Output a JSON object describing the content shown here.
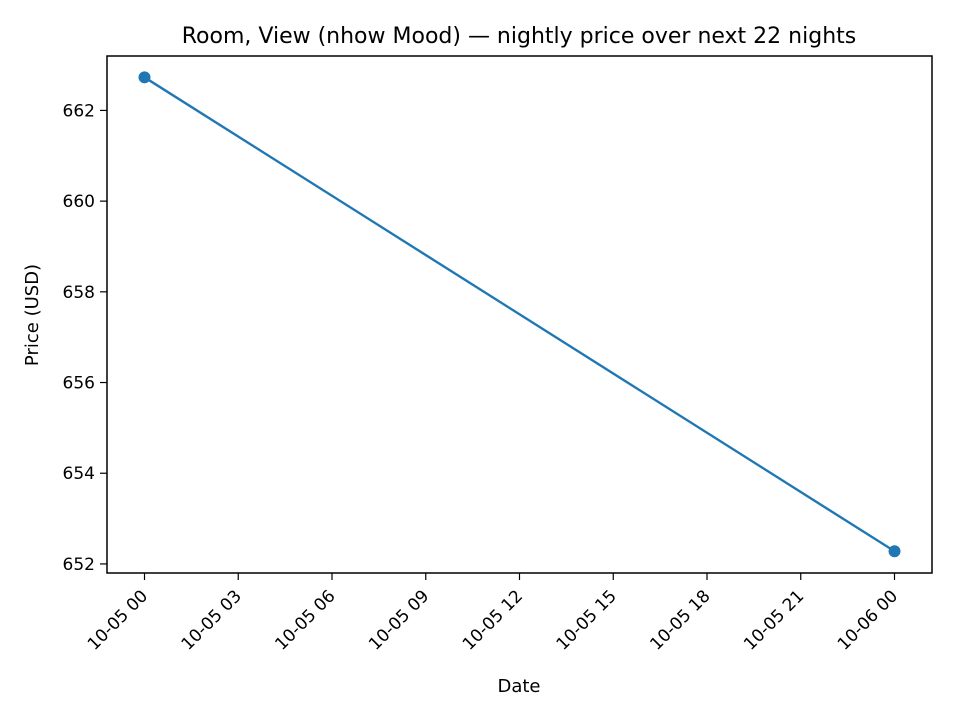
{
  "chart_data": {
    "type": "line",
    "title": "Room, View (nhow Mood) — nightly price over next 22 nights",
    "xlabel": "Date",
    "ylabel": "Price (USD)",
    "x_ticks": [
      "10-05 00",
      "10-05 03",
      "10-05 06",
      "10-05 09",
      "10-05 12",
      "10-05 15",
      "10-05 18",
      "10-05 21",
      "10-06 00"
    ],
    "y_ticks": [
      652,
      654,
      656,
      658,
      660,
      662
    ],
    "xlim": [
      "2024-10-04T22:48",
      "2024-10-06T01:12"
    ],
    "ylim": [
      651.8,
      663.2
    ],
    "grid": false,
    "series": [
      {
        "color": "#1f77b4",
        "marker": "circle",
        "points": [
          {
            "x": "2024-10-05T00:00",
            "y": 662.73
          },
          {
            "x": "2024-10-06T00:00",
            "y": 652.28
          }
        ]
      }
    ]
  }
}
